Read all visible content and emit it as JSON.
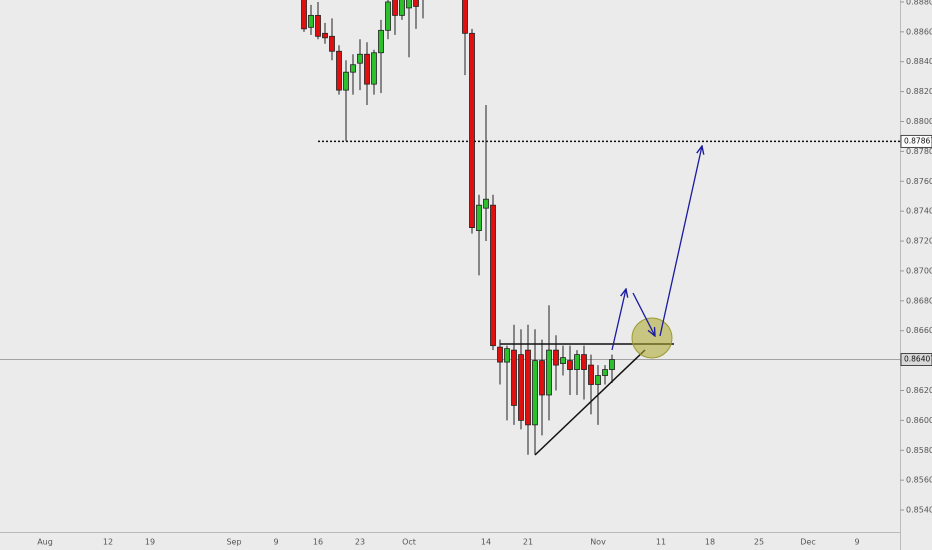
{
  "chart_data": {
    "type": "candlestick",
    "categories": [
      "Aug",
      null,
      null,
      null,
      null,
      null,
      null,
      null,
      null,
      "12",
      null,
      null,
      null,
      null,
      null,
      "19",
      null,
      null,
      null,
      null,
      null,
      null,
      null,
      null,
      null,
      null,
      null,
      "Sep",
      null,
      null,
      null,
      null,
      null,
      "9",
      null,
      null,
      null,
      null,
      null,
      "16",
      null,
      null,
      null,
      null,
      null,
      "23",
      null,
      null,
      null,
      null,
      null,
      null,
      "Oct",
      null,
      null,
      null,
      null,
      null,
      null,
      null,
      null,
      null,
      null,
      "14",
      null,
      null,
      null,
      null,
      null,
      "21",
      null,
      null,
      null,
      null,
      null,
      null,
      null,
      null,
      null,
      "Nov",
      null,
      null,
      null,
      null,
      null,
      null,
      null,
      null,
      "11",
      null,
      null,
      null,
      null,
      null,
      null,
      "18",
      null,
      null,
      null,
      null,
      null,
      null,
      "25",
      null,
      null,
      null,
      null,
      null,
      null,
      "Dec",
      null,
      null,
      null,
      null,
      null,
      null,
      "9",
      null,
      null,
      null,
      null
    ],
    "values": [
      null,
      null,
      null,
      null,
      null,
      null,
      null,
      null,
      null,
      null,
      null,
      null,
      null,
      null,
      null,
      null,
      null,
      null,
      null,
      null,
      null,
      null,
      null,
      null,
      null,
      null,
      null,
      null,
      null,
      null,
      null,
      null,
      null,
      null,
      null,
      null,
      null,
      [
        0.8884,
        0.8888,
        0.886,
        0.8862
      ],
      [
        0.8863,
        0.8878,
        0.8858,
        0.8871
      ],
      [
        0.8871,
        0.888,
        0.8855,
        0.8857
      ],
      [
        0.8859,
        0.8866,
        0.8852,
        0.8856
      ],
      [
        0.8857,
        0.8869,
        0.8841,
        0.8847
      ],
      [
        0.8847,
        0.8851,
        0.8818,
        0.8821
      ],
      [
        0.8821,
        0.8841,
        0.8787,
        0.8833
      ],
      [
        0.8833,
        0.8845,
        0.8818,
        0.8838
      ],
      [
        0.8839,
        0.8855,
        0.8821,
        0.8845
      ],
      [
        0.8845,
        0.8853,
        0.8811,
        0.8825
      ],
      [
        0.8825,
        0.8848,
        0.8818,
        0.8846
      ],
      [
        0.8846,
        0.8868,
        0.8819,
        0.8861
      ],
      [
        0.8861,
        0.8886,
        0.8855,
        0.888
      ],
      [
        0.8884,
        0.8887,
        0.8858,
        0.8871
      ],
      [
        0.8871,
        0.8887,
        0.8868,
        0.8884
      ],
      [
        0.8876,
        0.889,
        0.8843,
        0.8887
      ],
      [
        0.8889,
        0.8892,
        0.8862,
        0.8877
      ],
      [
        0.8884,
        0.8892,
        0.8869,
        0.8885
      ],
      null,
      null,
      null,
      null,
      null,
      [
        0.889,
        0.8892,
        0.8831,
        0.8859
      ],
      [
        0.8859,
        0.8862,
        0.8725,
        0.8729
      ],
      [
        0.8727,
        0.8751,
        0.8697,
        0.8744
      ],
      [
        0.8742,
        0.8811,
        0.872,
        0.8748
      ],
      [
        0.8744,
        0.8751,
        0.8647,
        0.865
      ],
      [
        0.8649,
        0.8654,
        0.8624,
        0.8639
      ],
      [
        0.8639,
        0.865,
        0.86,
        0.8648
      ],
      [
        0.8647,
        0.8664,
        0.8597,
        0.861
      ],
      [
        0.8644,
        0.8661,
        0.8594,
        0.86
      ],
      [
        0.8647,
        0.8664,
        0.8577,
        0.8597
      ],
      [
        0.8597,
        0.8661,
        0.8577,
        0.864
      ],
      [
        0.864,
        0.8654,
        0.859,
        0.8617
      ],
      [
        0.8617,
        0.8677,
        0.86,
        0.8647
      ],
      [
        0.8647,
        0.8657,
        0.862,
        0.8637
      ],
      [
        0.8638,
        0.865,
        0.863,
        0.8642
      ],
      [
        0.864,
        0.865,
        0.8617,
        0.8634
      ],
      [
        0.8634,
        0.8647,
        0.8617,
        0.8644
      ],
      [
        0.8644,
        0.865,
        0.8614,
        0.8634
      ],
      [
        0.8637,
        0.8644,
        0.8604,
        0.8624
      ],
      [
        0.8624,
        0.8637,
        0.8597,
        0.863
      ],
      [
        0.863,
        0.8637,
        0.8624,
        0.8634
      ],
      [
        0.8634,
        0.8644,
        0.8625,
        0.86407
      ],
      null,
      null,
      null,
      null,
      null,
      null,
      null,
      null,
      null,
      null,
      null,
      null,
      null,
      null,
      null,
      null,
      null,
      null,
      null,
      null,
      null,
      null,
      null,
      null,
      null,
      null,
      null,
      null,
      null,
      null,
      null,
      null,
      null,
      null,
      null,
      null,
      null,
      null,
      null
    ],
    "up_color": "#2dc02d",
    "down_color": "#e01010",
    "ylim": [
      0.85253,
      0.88813
    ],
    "yticks": [
      {
        "value": 0.854,
        "label": "0.85400"
      },
      {
        "value": 0.856,
        "label": "0.85600"
      },
      {
        "value": 0.858,
        "label": "0.85800"
      },
      {
        "value": 0.86,
        "label": "0.86000"
      },
      {
        "value": 0.862,
        "label": "0.86200"
      },
      {
        "value": 0.864,
        "label": "0.86400"
      },
      {
        "value": 0.866,
        "label": "0.86600"
      },
      {
        "value": 0.868,
        "label": "0.86800"
      },
      {
        "value": 0.87,
        "label": "0.87000"
      },
      {
        "value": 0.872,
        "label": "0.87200"
      },
      {
        "value": 0.874,
        "label": "0.87400"
      },
      {
        "value": 0.876,
        "label": "0.87600"
      },
      {
        "value": 0.878,
        "label": "0.87800"
      },
      {
        "value": 0.88,
        "label": "0.88000"
      },
      {
        "value": 0.882,
        "label": "0.88200"
      },
      {
        "value": 0.884,
        "label": "0.88400"
      },
      {
        "value": 0.886,
        "label": "0.88600"
      },
      {
        "value": 0.888,
        "label": "0.88800"
      }
    ],
    "resistance_level": 0.87867,
    "last_price": 0.86407
  }
}
